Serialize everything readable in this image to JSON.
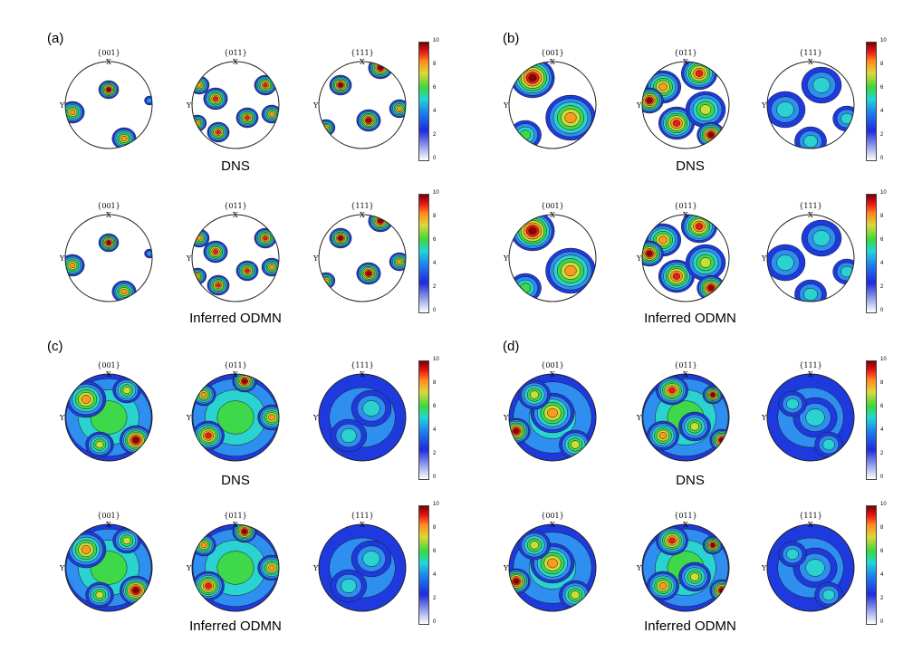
{
  "panel_labels": [
    "(a)",
    "(b)",
    "(c)",
    "(d)"
  ],
  "row_labels": {
    "dns": "DNS",
    "inferred": "Inferred ODMN"
  },
  "pole_titles": [
    "{001}",
    "{011}",
    "{111}"
  ],
  "axis_labels": {
    "x": "X",
    "y": "Y"
  },
  "colorbar": {
    "ticks": [
      "0",
      "2",
      "4",
      "6",
      "8",
      "10"
    ]
  },
  "palette": {
    "level_colors": [
      "#ffffff",
      "#b9c2f0",
      "#1e3adf",
      "#2f8ff0",
      "#2ad3cf",
      "#3fd84a",
      "#c8de3c",
      "#ff9a1e",
      "#e61c1c",
      "#8b0000"
    ]
  }
}
